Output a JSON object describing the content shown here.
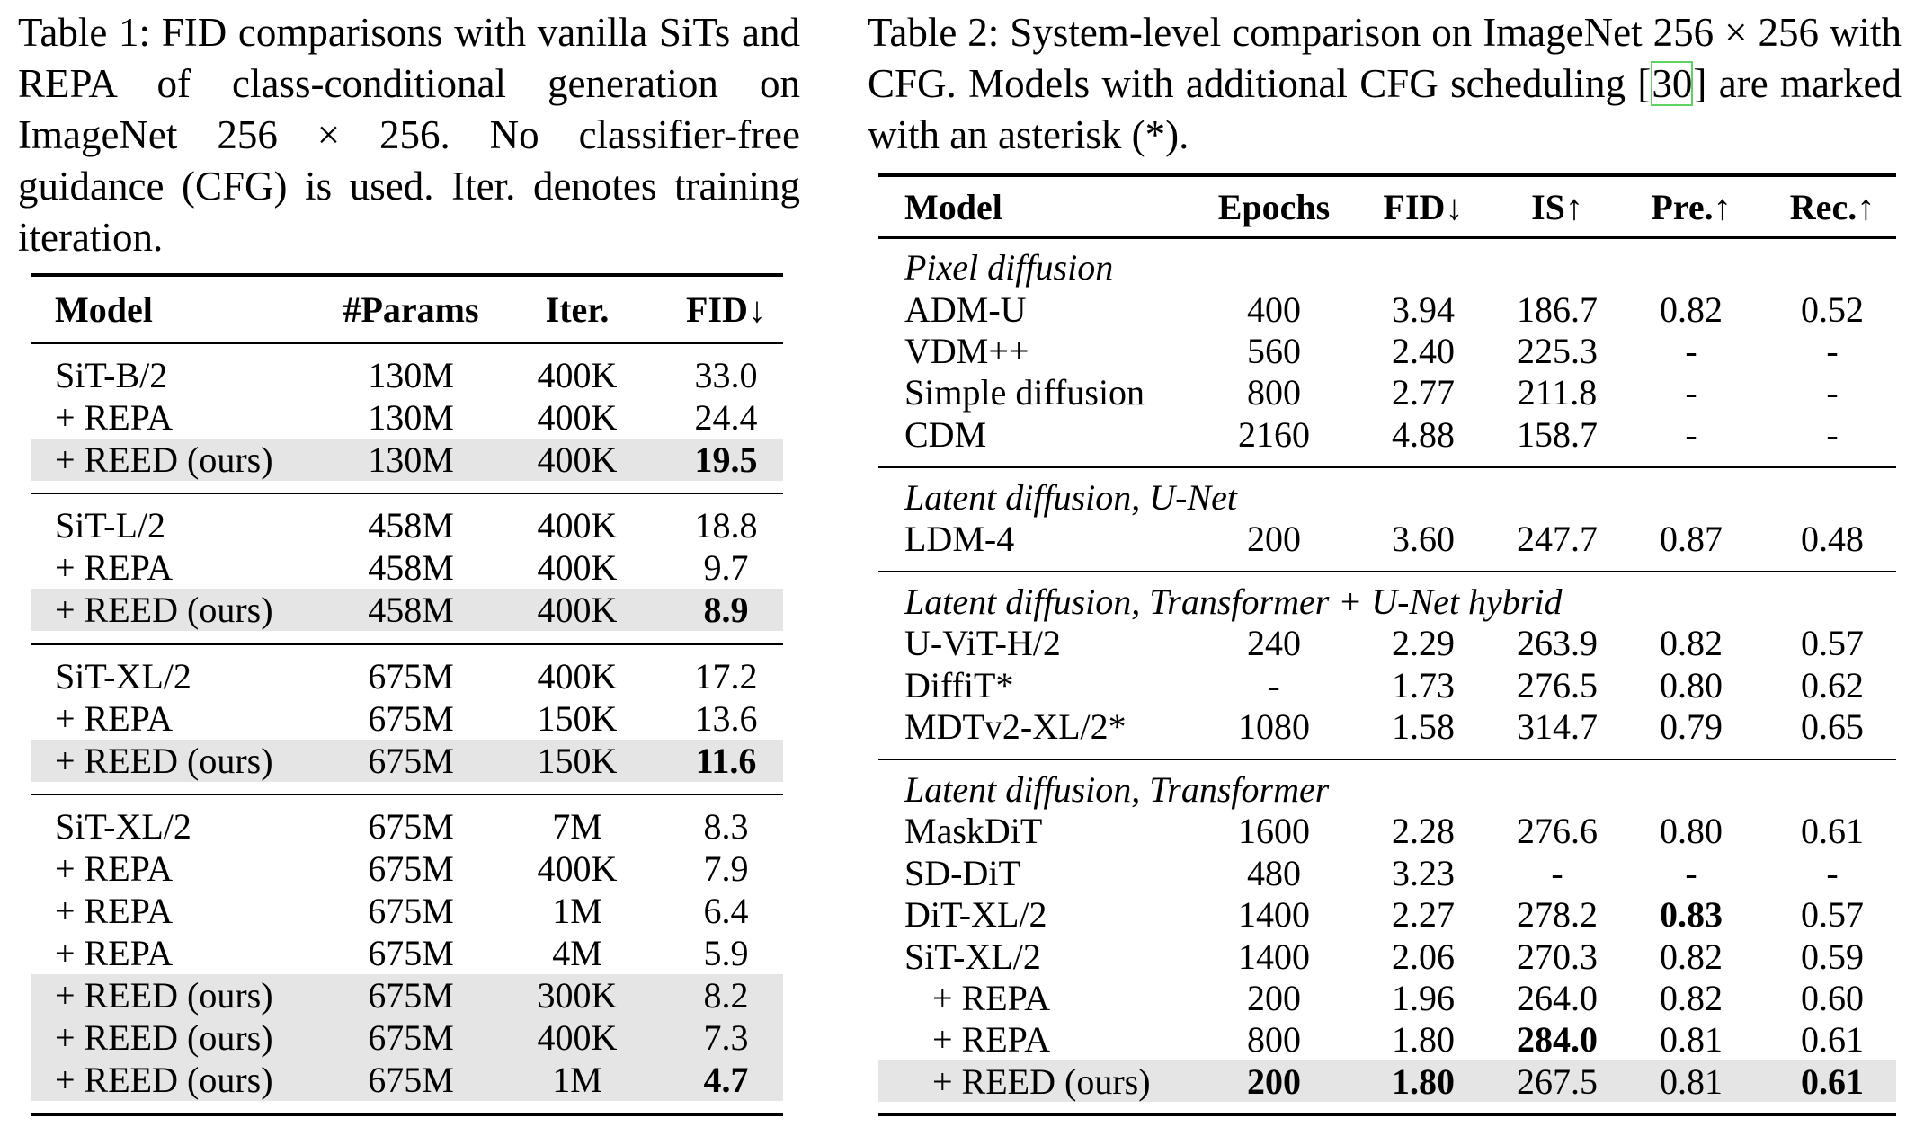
{
  "table1": {
    "caption": "Table 1: FID comparisons with vanilla SiTs and REPA of class-conditional generation on ImageNet 256 × 256.  No classifier-free guidance (CFG) is used. Iter. denotes training iteration.",
    "headers": [
      "Model",
      "#Params",
      "Iter.",
      "FID↓"
    ],
    "groups": [
      {
        "rows": [
          {
            "cells": [
              "SiT-B/2",
              "130M",
              "400K",
              "33.0"
            ]
          },
          {
            "cells": [
              "+ REPA",
              "130M",
              "400K",
              "24.4"
            ]
          },
          {
            "cells": [
              "+ REED (ours)",
              "130M",
              "400K",
              "19.5"
            ],
            "highlight": true,
            "bold": [
              3
            ]
          }
        ]
      },
      {
        "rows": [
          {
            "cells": [
              "SiT-L/2",
              "458M",
              "400K",
              "18.8"
            ]
          },
          {
            "cells": [
              "+ REPA",
              "458M",
              "400K",
              "9.7"
            ]
          },
          {
            "cells": [
              "+ REED (ours)",
              "458M",
              "400K",
              "8.9"
            ],
            "highlight": true,
            "bold": [
              3
            ]
          }
        ]
      },
      {
        "rows": [
          {
            "cells": [
              "SiT-XL/2",
              "675M",
              "400K",
              "17.2"
            ]
          },
          {
            "cells": [
              "+ REPA",
              "675M",
              "150K",
              "13.6"
            ]
          },
          {
            "cells": [
              "+ REED (ours)",
              "675M",
              "150K",
              "11.6"
            ],
            "highlight": true,
            "bold": [
              3
            ]
          }
        ]
      },
      {
        "rows": [
          {
            "cells": [
              "SiT-XL/2",
              "675M",
              "7M",
              "8.3"
            ]
          },
          {
            "cells": [
              "+ REPA",
              "675M",
              "400K",
              "7.9"
            ]
          },
          {
            "cells": [
              "+ REPA",
              "675M",
              "1M",
              "6.4"
            ]
          },
          {
            "cells": [
              "+ REPA",
              "675M",
              "4M",
              "5.9"
            ]
          },
          {
            "cells": [
              "+ REED (ours)",
              "675M",
              "300K",
              "8.2"
            ],
            "highlight": true
          },
          {
            "cells": [
              "+ REED (ours)",
              "675M",
              "400K",
              "7.3"
            ],
            "highlight": true
          },
          {
            "cells": [
              "+ REED (ours)",
              "675M",
              "1M",
              "4.7"
            ],
            "highlight": true,
            "bold": [
              3
            ]
          }
        ]
      }
    ]
  },
  "table2": {
    "caption_before": "Table 2: System-level comparison on ImageNet 256 × 256 with CFG. Models with additional CFG scheduling [",
    "citation": "30",
    "caption_after": "] are marked with an asterisk (*).",
    "citation_color": "#5fd35f",
    "headers": [
      "Model",
      "Epochs",
      "FID↓",
      "IS↑",
      "Pre.↑",
      "Rec.↑"
    ],
    "groups": [
      {
        "title": "Pixel diffusion",
        "rows": [
          {
            "cells": [
              "ADM-U",
              "400",
              "3.94",
              "186.7",
              "0.82",
              "0.52"
            ]
          },
          {
            "cells": [
              "VDM++",
              "560",
              "2.40",
              "225.3",
              "-",
              "-"
            ]
          },
          {
            "cells": [
              "Simple diffusion",
              "800",
              "2.77",
              "211.8",
              "-",
              "-"
            ]
          },
          {
            "cells": [
              "CDM",
              "2160",
              "4.88",
              "158.7",
              "-",
              "-"
            ]
          }
        ]
      },
      {
        "title": "Latent diffusion, U-Net",
        "rows": [
          {
            "cells": [
              "LDM-4",
              "200",
              "3.60",
              "247.7",
              "0.87",
              "0.48"
            ]
          }
        ]
      },
      {
        "title": "Latent diffusion, Transformer + U-Net hybrid",
        "rows": [
          {
            "cells": [
              "U-ViT-H/2",
              "240",
              "2.29",
              "263.9",
              "0.82",
              "0.57"
            ]
          },
          {
            "cells": [
              "DiffiT*",
              "-",
              "1.73",
              "276.5",
              "0.80",
              "0.62"
            ]
          },
          {
            "cells": [
              "MDTv2-XL/2*",
              "1080",
              "1.58",
              "314.7",
              "0.79",
              "0.65"
            ]
          }
        ]
      },
      {
        "title": "Latent diffusion, Transformer",
        "rows": [
          {
            "cells": [
              "MaskDiT",
              "1600",
              "2.28",
              "276.6",
              "0.80",
              "0.61"
            ]
          },
          {
            "cells": [
              "SD-DiT",
              "480",
              "3.23",
              "-",
              "-",
              "-"
            ]
          },
          {
            "cells": [
              "DiT-XL/2",
              "1400",
              "2.27",
              "278.2",
              "0.83",
              "0.57"
            ],
            "bold": [
              4
            ]
          },
          {
            "cells": [
              "SiT-XL/2",
              "1400",
              "2.06",
              "270.3",
              "0.82",
              "0.59"
            ]
          },
          {
            "cells": [
              "+ REPA",
              "200",
              "1.96",
              "264.0",
              "0.82",
              "0.60"
            ],
            "indent": true
          },
          {
            "cells": [
              "+ REPA",
              "800",
              "1.80",
              "284.0",
              "0.81",
              "0.61"
            ],
            "indent": true,
            "bold": [
              3
            ]
          },
          {
            "cells": [
              "+ REED (ours)",
              "200",
              "1.80",
              "267.5",
              "0.81",
              "0.61"
            ],
            "indent": true,
            "highlight": true,
            "bold": [
              1,
              2,
              5
            ]
          }
        ]
      }
    ]
  },
  "colors": {
    "highlight_row": "#e5e5e5",
    "rule": "#000000"
  }
}
